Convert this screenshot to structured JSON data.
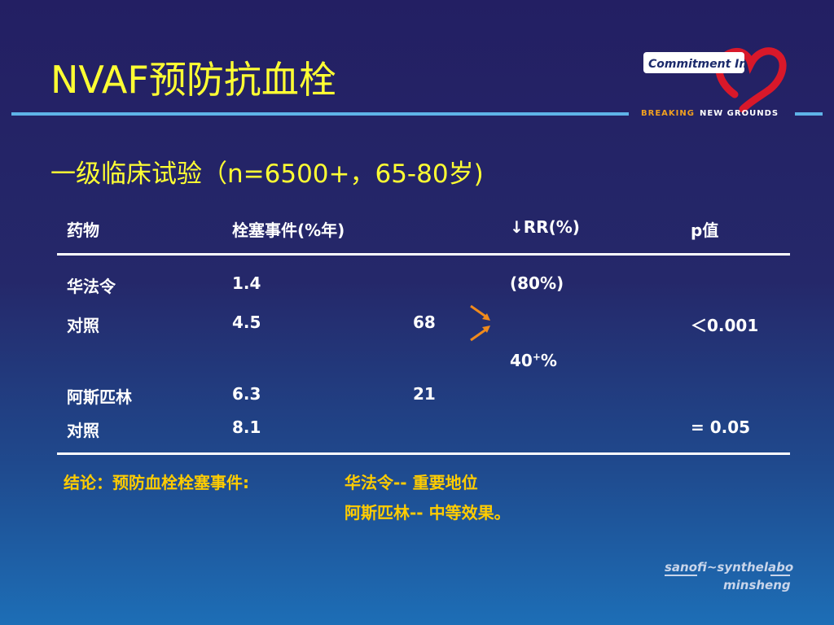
{
  "header": {
    "title": "NVAF预防抗血栓",
    "logo_text": "Commitment In",
    "tagline_a": "BREAKING",
    "tagline_b": "NEW GROUNDS",
    "accent_color": "#ffff33",
    "rule_color": "#5fb3e8"
  },
  "subtitle": "一级临床试验（n=6500+，65-80岁)",
  "table": {
    "headers": {
      "drug": "药物",
      "events": "栓塞事件(%年)",
      "rr_arrow": "↓",
      "rr": "RR(%)",
      "p": "p值"
    },
    "rows": [
      {
        "drug": "华法令",
        "events": "1.4",
        "extra": "",
        "rr": "(80%)",
        "p": ""
      },
      {
        "drug": "对照",
        "events": "4.5",
        "extra": "68",
        "rr": "",
        "p": "＜0.001"
      },
      {
        "drug": "",
        "events": "",
        "extra": "",
        "rr": "40",
        "rr_sup": "+",
        "rr_tail": "%",
        "p": ""
      },
      {
        "drug": "阿斯匹林",
        "events": "6.3",
        "extra": "21",
        "rr": "",
        "p": ""
      },
      {
        "drug": "对照",
        "events": "8.1",
        "extra": "",
        "rr": "",
        "p": "= 0.05"
      }
    ],
    "arrow_color": "#f08a1c"
  },
  "conclusion": {
    "label": "结论：预防血栓栓塞事件:",
    "line1": "华法令-- 重要地位",
    "line2": "阿斯匹林-- 中等效果。",
    "color": "#ffcc00"
  },
  "footer": {
    "brand_line1": "sanofi~synthelabo",
    "brand_line2": "minsheng"
  }
}
